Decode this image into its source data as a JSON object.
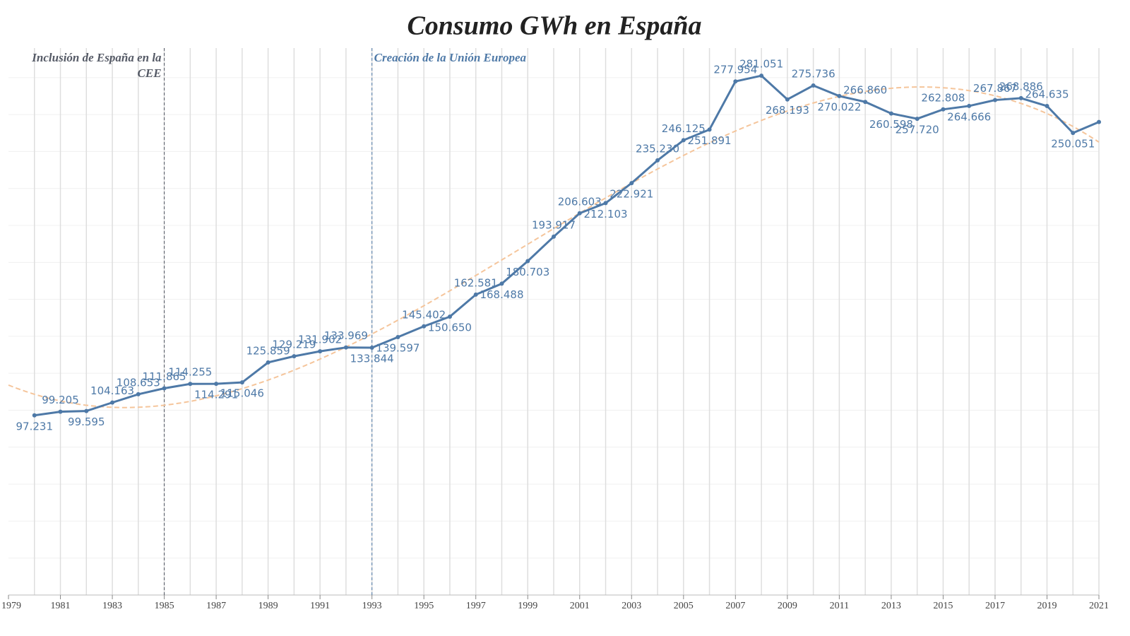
{
  "chart_data": {
    "type": "line",
    "title": "Consumo GWh en España",
    "x": [
      1980,
      1981,
      1982,
      1983,
      1984,
      1985,
      1986,
      1987,
      1988,
      1989,
      1990,
      1991,
      1992,
      1993,
      1994,
      1995,
      1996,
      1997,
      1998,
      1999,
      2000,
      2001,
      2002,
      2003,
      2004,
      2005,
      2006,
      2007,
      2008,
      2009,
      2010,
      2011,
      2012,
      2013,
      2014,
      2015,
      2016,
      2017,
      2018,
      2019,
      2020,
      2021
    ],
    "series": [
      {
        "color": "#4e79a7",
        "values": [
          97.231,
          99.205,
          99.595,
          104.163,
          108.653,
          111.865,
          114.255,
          114.291,
          115.046,
          125.859,
          129.219,
          131.902,
          133.969,
          133.844,
          139.597,
          145.402,
          150.65,
          162.581,
          168.488,
          180.703,
          193.917,
          206.603,
          212.103,
          222.921,
          235.23,
          246.125,
          251.891,
          277.954,
          281.051,
          268.193,
          275.736,
          270.022,
          266.86,
          260.598,
          257.72,
          262.808,
          264.666,
          267.867,
          268.886,
          264.635,
          250.051,
          256
        ],
        "value_labels": [
          "97.231",
          "99.205",
          "99.595",
          "104.163",
          "108.653",
          "111.865",
          "114.255",
          "114.291",
          "115.046",
          "125.859",
          "129.219",
          "131.902",
          "133.969",
          "133.844",
          "139.597",
          "145.402",
          "150.650",
          "162.581",
          "168.488",
          "180.703",
          "193.917",
          "206.603",
          "212.103",
          "222.921",
          "235.230",
          "246.125",
          "251.891",
          "277.954",
          "281.051",
          "268.193",
          "275.736",
          "270.022",
          "266.860",
          "260.598",
          "257.720",
          "262.808",
          "264.666",
          "267.867",
          "268.886",
          "264.635",
          "250.051",
          null
        ]
      }
    ],
    "xlim": [
      1979,
      2021
    ],
    "xticks": [
      1979,
      1981,
      1983,
      1985,
      1987,
      1989,
      1991,
      1993,
      1995,
      1997,
      1999,
      2001,
      2003,
      2005,
      2007,
      2009,
      2011,
      2013,
      2015,
      2017,
      2019,
      2021
    ],
    "ylim": [
      0,
      296
    ],
    "yticks": [
      0,
      20,
      40,
      60,
      80,
      100,
      120,
      140,
      160,
      180,
      200,
      220,
      240,
      260,
      280
    ],
    "grid": true,
    "trendline": true,
    "trendline_color": "#f5c59b",
    "annotations": [
      {
        "x": 1985,
        "text": [
          "Inclusión de España en la",
          "CEE"
        ],
        "color": "#555a66",
        "side": "left"
      },
      {
        "x": 1993,
        "text": [
          "Creación de la Unión Europea"
        ],
        "color": "#4e79a7",
        "side": "right"
      }
    ]
  }
}
